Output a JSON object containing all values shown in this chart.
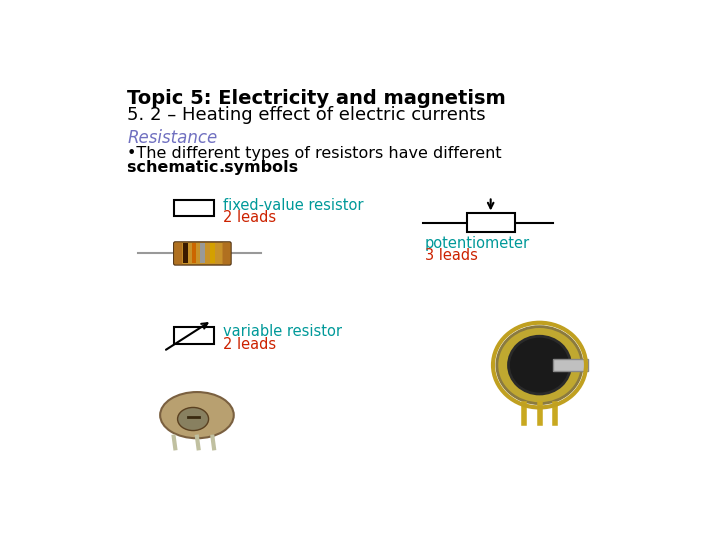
{
  "title_line1": "Topic 5: Electricity and magnetism",
  "title_line2": "5. 2 – Heating effect of electric currents",
  "section_title": "Resistance",
  "bullet_line1": "•The different types of resistors have different",
  "bullet_line2_bold": "schematic symbols",
  "bullet_line2_end": ".",
  "label1_teal": "fixed-value resistor",
  "label1_red": "2 leads",
  "label2_teal": "variable resistor",
  "label2_red": "2 leads",
  "label3_teal": "potentiometer",
  "label3_red": "3 leads",
  "bg_color": "#ffffff",
  "title_color": "#000000",
  "section_color": "#7070c0",
  "teal_color": "#009999",
  "red_color": "#cc2200",
  "rect_edge": "#000000",
  "rect_fill": "#ffffff"
}
